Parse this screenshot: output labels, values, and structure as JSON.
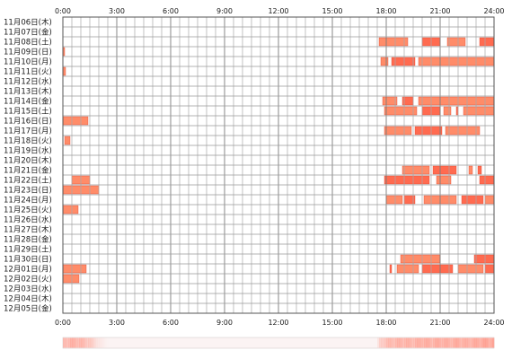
{
  "chart_data": {
    "type": "bar",
    "x_ticks": [
      "0:00",
      "3:00",
      "6:00",
      "9:00",
      "12:00",
      "15:00",
      "18:00",
      "21:00",
      "24:00"
    ],
    "x_range": [
      0,
      24
    ],
    "grid": true,
    "bar_colors": [
      "#ff8c69",
      "#ff6b50"
    ],
    "days": [
      {
        "label": "11月06日(木)",
        "intervals": []
      },
      {
        "label": "11月07日(金)",
        "intervals": []
      },
      {
        "label": "11月08日(土)",
        "intervals": [
          [
            17.6,
            19.2
          ],
          [
            20.0,
            21.0
          ],
          [
            21.4,
            22.4
          ],
          [
            23.2,
            24.0
          ]
        ]
      },
      {
        "label": "11月09日(日)",
        "intervals": [
          [
            0.0,
            0.1
          ]
        ]
      },
      {
        "label": "11月10日(月)",
        "intervals": [
          [
            17.7,
            18.1
          ],
          [
            18.3,
            19.6
          ],
          [
            19.8,
            24.0
          ]
        ]
      },
      {
        "label": "11月11日(火)",
        "intervals": [
          [
            0.0,
            0.15
          ]
        ]
      },
      {
        "label": "11月12日(水)",
        "intervals": []
      },
      {
        "label": "11月13日(木)",
        "intervals": []
      },
      {
        "label": "11月14日(金)",
        "intervals": [
          [
            17.8,
            18.6
          ],
          [
            18.9,
            19.5
          ],
          [
            19.8,
            24.0
          ]
        ]
      },
      {
        "label": "11月15日(土)",
        "intervals": [
          [
            17.9,
            19.7
          ],
          [
            20.0,
            21.0
          ],
          [
            21.2,
            21.6
          ],
          [
            21.9,
            22.0
          ],
          [
            22.3,
            24.0
          ]
        ]
      },
      {
        "label": "11月16日(日)",
        "intervals": [
          [
            0.0,
            1.4
          ]
        ]
      },
      {
        "label": "11月17日(月)",
        "intervals": [
          [
            17.9,
            19.4
          ],
          [
            19.6,
            21.1
          ],
          [
            21.3,
            23.2
          ]
        ]
      },
      {
        "label": "11月18日(火)",
        "intervals": [
          [
            0.1,
            0.4
          ]
        ]
      },
      {
        "label": "11月19日(水)",
        "intervals": []
      },
      {
        "label": "11月20日(木)",
        "intervals": []
      },
      {
        "label": "11月21日(金)",
        "intervals": [
          [
            18.9,
            20.4
          ],
          [
            20.6,
            21.9
          ],
          [
            22.6,
            22.8
          ],
          [
            23.1,
            23.3
          ]
        ]
      },
      {
        "label": "11月22日(土)",
        "intervals": [
          [
            0.5,
            1.5
          ],
          [
            17.9,
            20.4
          ],
          [
            20.8,
            21.6
          ],
          [
            23.2,
            24.0
          ]
        ]
      },
      {
        "label": "11月23日(日)",
        "intervals": [
          [
            0.0,
            2.0
          ]
        ]
      },
      {
        "label": "11月24日(月)",
        "intervals": [
          [
            18.0,
            18.9
          ],
          [
            19.0,
            19.6
          ],
          [
            20.1,
            21.9
          ],
          [
            22.2,
            23.4
          ],
          [
            23.5,
            24.0
          ]
        ]
      },
      {
        "label": "11月25日(火)",
        "intervals": [
          [
            0.0,
            0.85
          ]
        ]
      },
      {
        "label": "11月26日(水)",
        "intervals": []
      },
      {
        "label": "11月27日(木)",
        "intervals": []
      },
      {
        "label": "11月28日(金)",
        "intervals": []
      },
      {
        "label": "11月29日(土)",
        "intervals": []
      },
      {
        "label": "11月30日(日)",
        "intervals": [
          [
            18.8,
            21.0
          ],
          [
            22.9,
            24.0
          ]
        ]
      },
      {
        "label": "12月01日(月)",
        "intervals": [
          [
            0.0,
            1.3
          ],
          [
            18.2,
            18.3
          ],
          [
            18.6,
            19.8
          ],
          [
            20.0,
            21.7
          ],
          [
            22.0,
            23.4
          ],
          [
            23.5,
            24.0
          ]
        ]
      },
      {
        "label": "12月02日(火)",
        "intervals": [
          [
            0.0,
            0.9
          ]
        ]
      },
      {
        "label": "12月03日(水)",
        "intervals": []
      },
      {
        "label": "12月04日(木)",
        "intervals": []
      },
      {
        "label": "12月05日(金)",
        "intervals": []
      }
    ],
    "summary_strip": {
      "description_note": "overall activity density by time of day",
      "hot_color": "#ff8c7a",
      "density": [
        [
          0.0,
          0.45
        ],
        [
          0.5,
          0.55
        ],
        [
          1.0,
          0.5
        ],
        [
          1.5,
          0.35
        ],
        [
          2.0,
          0.1
        ],
        [
          2.5,
          0.0
        ],
        [
          17.5,
          0.0
        ],
        [
          17.6,
          0.25
        ],
        [
          18.0,
          0.45
        ],
        [
          18.5,
          0.5
        ],
        [
          19.0,
          0.55
        ],
        [
          19.5,
          0.5
        ],
        [
          20.0,
          0.6
        ],
        [
          20.5,
          0.55
        ],
        [
          21.0,
          0.6
        ],
        [
          21.5,
          0.55
        ],
        [
          22.0,
          0.6
        ],
        [
          22.5,
          0.55
        ],
        [
          23.0,
          0.6
        ],
        [
          23.5,
          0.65
        ],
        [
          24.0,
          0.65
        ]
      ]
    }
  }
}
